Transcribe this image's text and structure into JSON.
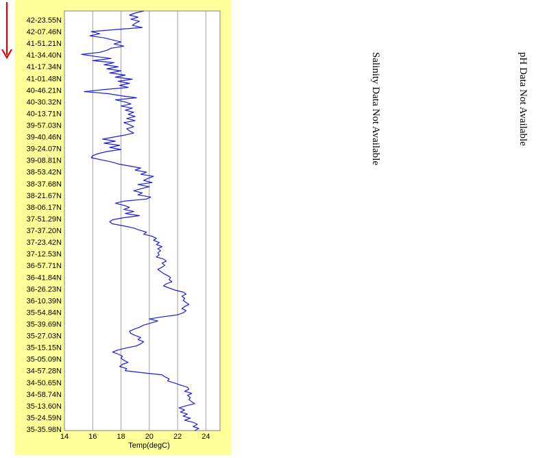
{
  "chart_data": {
    "type": "line",
    "xlabel": "Temp(degC)",
    "xlim": [
      14,
      25
    ],
    "xticks": [
      14,
      16,
      18,
      20,
      22,
      24
    ],
    "ylabel": "",
    "yticks": [
      "42-23.55N",
      "42-07.46N",
      "41-51.21N",
      "41-34.40N",
      "41-17.34N",
      "41-01.48N",
      "40-46.21N",
      "40-30.32N",
      "40-13.71N",
      "39-57.03N",
      "39-40.46N",
      "39-24.07N",
      "39-08.81N",
      "38-53.42N",
      "38-37.68N",
      "38-21.67N",
      "38-06.17N",
      "37-51.29N",
      "37-37.20N",
      "37-23.42N",
      "37-12.53N",
      "36-57.71N",
      "36-41.84N",
      "36-26.23N",
      "36-10.39N",
      "35-54.84N",
      "35-39.69N",
      "35-27.03N",
      "35-15.15N",
      "35-05.09N",
      "34-57.28N",
      "34-50.65N",
      "34-58.74N",
      "35-13.60N",
      "35-24.59N",
      "35-35.98N"
    ],
    "grid": "vertical",
    "series": [
      {
        "color": "#1a1ae6",
        "x": [
          19.6,
          19.0,
          18.6,
          19.2,
          18.7,
          19.3,
          19.0,
          18.8,
          19.5,
          17.6,
          15.9,
          16.5,
          15.8,
          16.8,
          17.4,
          18.0,
          17.5,
          18.2,
          17.3,
          17.0,
          16.5,
          15.2,
          16.2,
          17.3,
          16.0,
          17.5,
          16.8,
          17.8,
          17.0,
          18.0,
          17.2,
          18.3,
          17.6,
          18.8,
          17.8,
          18.6,
          17.9,
          18.5,
          16.8,
          15.4,
          17.1,
          18.0,
          19.1,
          17.6,
          18.3,
          18.7,
          18.0,
          18.8,
          18.3,
          18.9,
          18.5,
          19.0,
          18.4,
          19.0,
          18.2,
          18.6,
          18.9,
          18.4,
          18.6,
          18.9,
          18.3,
          17.5,
          16.7,
          17.6,
          16.8,
          17.9,
          17.2,
          18.0,
          17.0,
          16.4,
          16.0,
          15.9,
          16.6,
          17.3,
          17.8,
          18.6,
          19.4,
          19.0,
          19.8,
          19.4,
          20.3,
          19.9,
          19.6,
          20.2,
          19.2,
          20.0,
          19.4,
          18.9,
          19.5,
          19.2,
          20.1,
          19.8,
          18.2,
          17.6,
          18.2,
          18.6,
          18.2,
          18.9,
          18.3,
          19.3,
          18.2,
          17.4,
          17.2,
          17.4,
          18.2,
          18.9,
          19.3,
          19.8,
          19.6,
          20.2,
          20.5,
          20.3,
          20.7,
          20.5,
          20.9,
          20.6,
          20.8,
          20.6,
          20.7,
          20.5,
          21.0,
          21.2,
          20.9,
          21.1,
          20.9,
          20.6,
          20.8,
          21.0,
          21.3,
          21.5,
          21.4,
          21.6,
          21.2,
          21.0,
          21.4,
          21.8,
          22.4,
          22.6,
          22.3,
          22.5,
          22.4,
          22.6,
          22.8,
          22.5,
          22.3,
          22.6,
          22.4,
          22.0,
          20.9,
          20.0,
          20.6,
          20.1,
          19.6,
          19.3,
          18.9,
          18.6,
          18.7,
          19.0,
          19.4,
          19.2,
          19.6,
          19.4,
          19.1,
          18.4,
          17.8,
          17.4,
          17.8,
          18.1,
          18.0,
          18.2,
          18.5,
          18.1,
          17.9,
          18.4,
          18.3,
          19.5,
          20.9,
          21.1,
          21.4,
          21.3,
          21.8,
          22.2,
          22.7,
          22.8,
          22.5,
          23.0,
          22.7,
          22.9,
          22.8,
          23.0,
          23.2,
          22.6,
          22.1,
          22.5,
          22.2,
          22.7,
          22.4,
          22.9,
          22.5,
          23.1,
          23.4,
          23.1,
          23.5,
          23.2
        ]
      }
    ]
  },
  "side_notes": {
    "salinity": "Salinity Data Not Available",
    "ph": "pH Data Not Available"
  },
  "arrow_color": "#e00000"
}
